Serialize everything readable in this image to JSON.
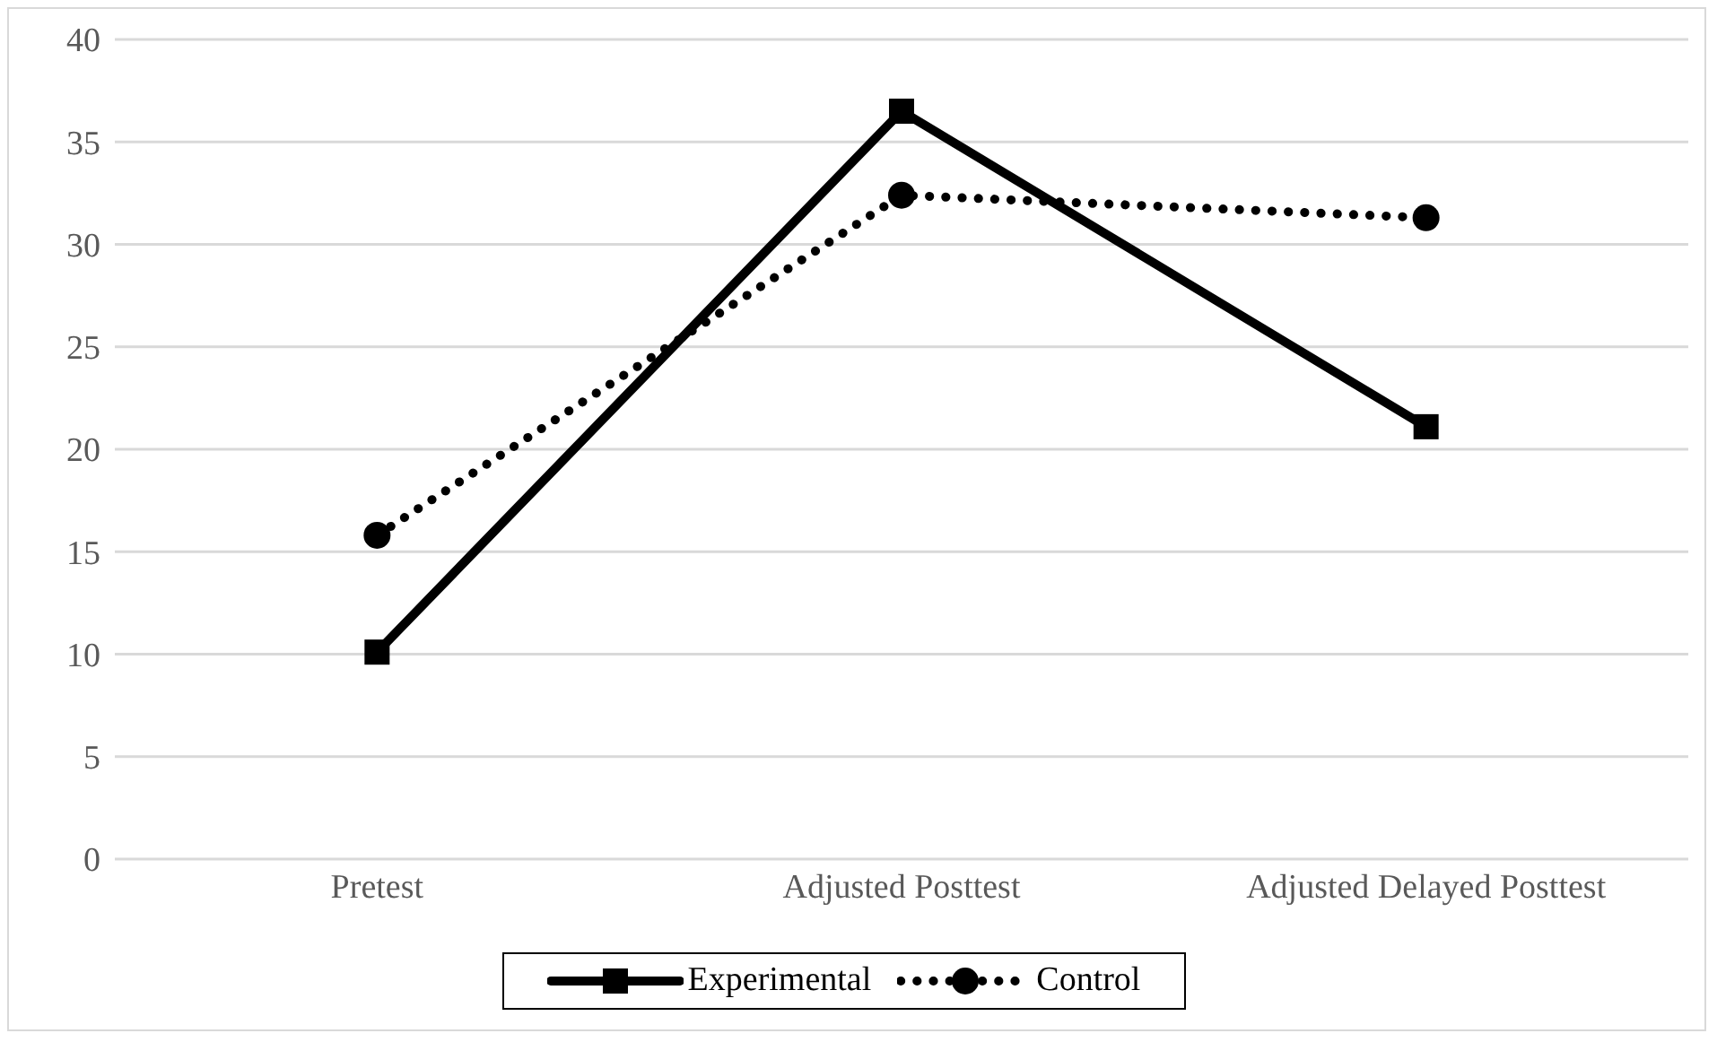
{
  "chart_data": {
    "type": "line",
    "categories": [
      "Pretest",
      "Adjusted Posttest",
      "Adjusted Delayed Posttest"
    ],
    "series": [
      {
        "name": "Experimental",
        "color": "#000000",
        "values": [
          10.1,
          36.5,
          21.1
        ],
        "marker": "square",
        "line_style": "solid"
      },
      {
        "name": "Control",
        "color": "#000000",
        "values": [
          15.8,
          32.4,
          31.3
        ],
        "marker": "circle",
        "line_style": "dotted"
      }
    ],
    "ylim": [
      0,
      40
    ],
    "yticks": [
      0,
      5,
      10,
      15,
      20,
      25,
      30,
      35,
      40
    ],
    "grid": "y",
    "legend": "bottom"
  }
}
